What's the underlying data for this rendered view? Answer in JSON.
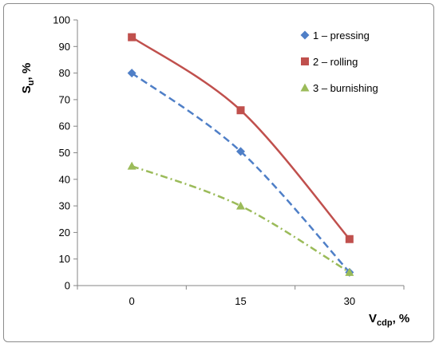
{
  "chart_data": {
    "type": "line",
    "x": [
      0,
      15,
      30
    ],
    "categories": [
      "0",
      "15",
      "30"
    ],
    "xlabel": {
      "main": "V",
      "sub": "cdp",
      "unit": ", %"
    },
    "ylabel": {
      "main": "S",
      "sub": "u",
      "unit": ", %"
    },
    "ylim": [
      0,
      100
    ],
    "yticks": [
      "0",
      "10",
      "20",
      "30",
      "40",
      "50",
      "60",
      "70",
      "80",
      "90",
      "100"
    ],
    "grid": false,
    "legend_position": "top-right",
    "series": [
      {
        "name": "1  – pressing",
        "values": [
          80,
          50.5,
          5
        ],
        "color": "#4f7fc7",
        "marker": "diamond",
        "line": "dashed"
      },
      {
        "name": "2  – rolling",
        "values": [
          93.5,
          66,
          17.5
        ],
        "color": "#c0504d",
        "marker": "square",
        "line": "solid"
      },
      {
        "name": "3  – burnishing",
        "values": [
          45,
          30,
          5
        ],
        "color": "#9bbb59",
        "marker": "triangle",
        "line": "dashdot"
      }
    ]
  }
}
